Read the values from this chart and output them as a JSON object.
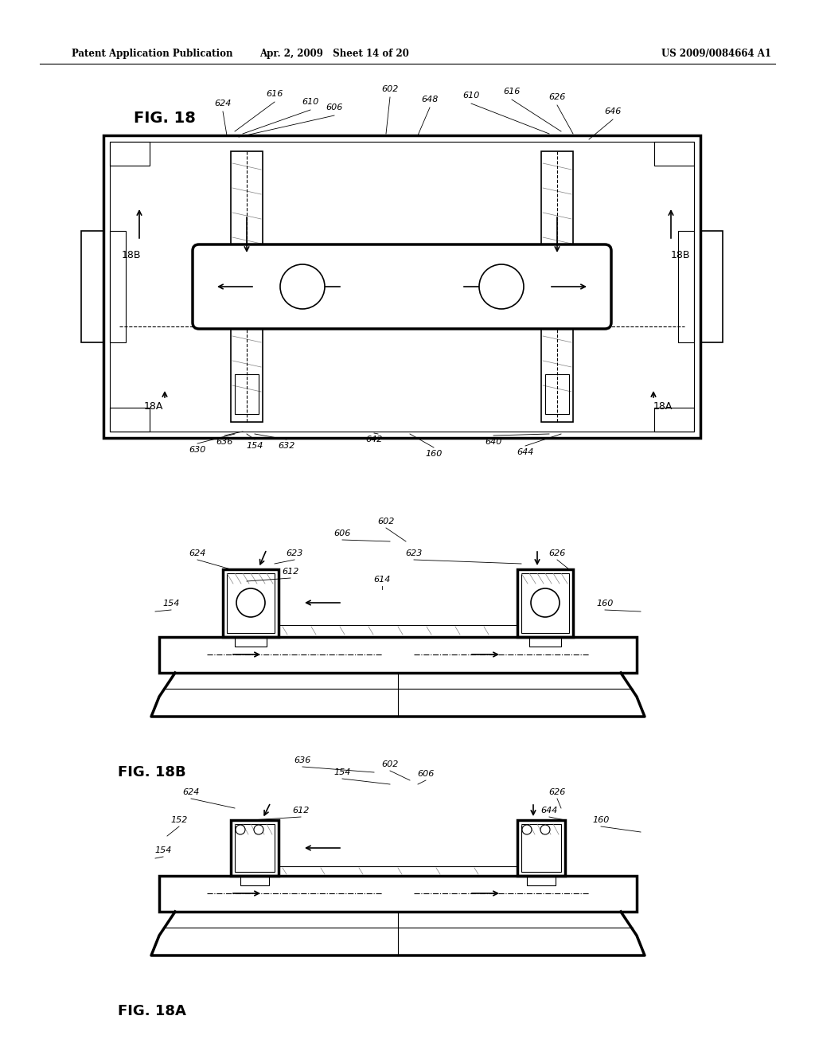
{
  "bg_color": "#ffffff",
  "header_left": "Patent Application Publication",
  "header_mid": "Apr. 2, 2009   Sheet 14 of 20",
  "header_right": "US 2009/0084664 A1",
  "fig18_label": "FIG. 18",
  "fig18b_label": "FIG. 18B",
  "fig18a_label": "FIG. 18A"
}
